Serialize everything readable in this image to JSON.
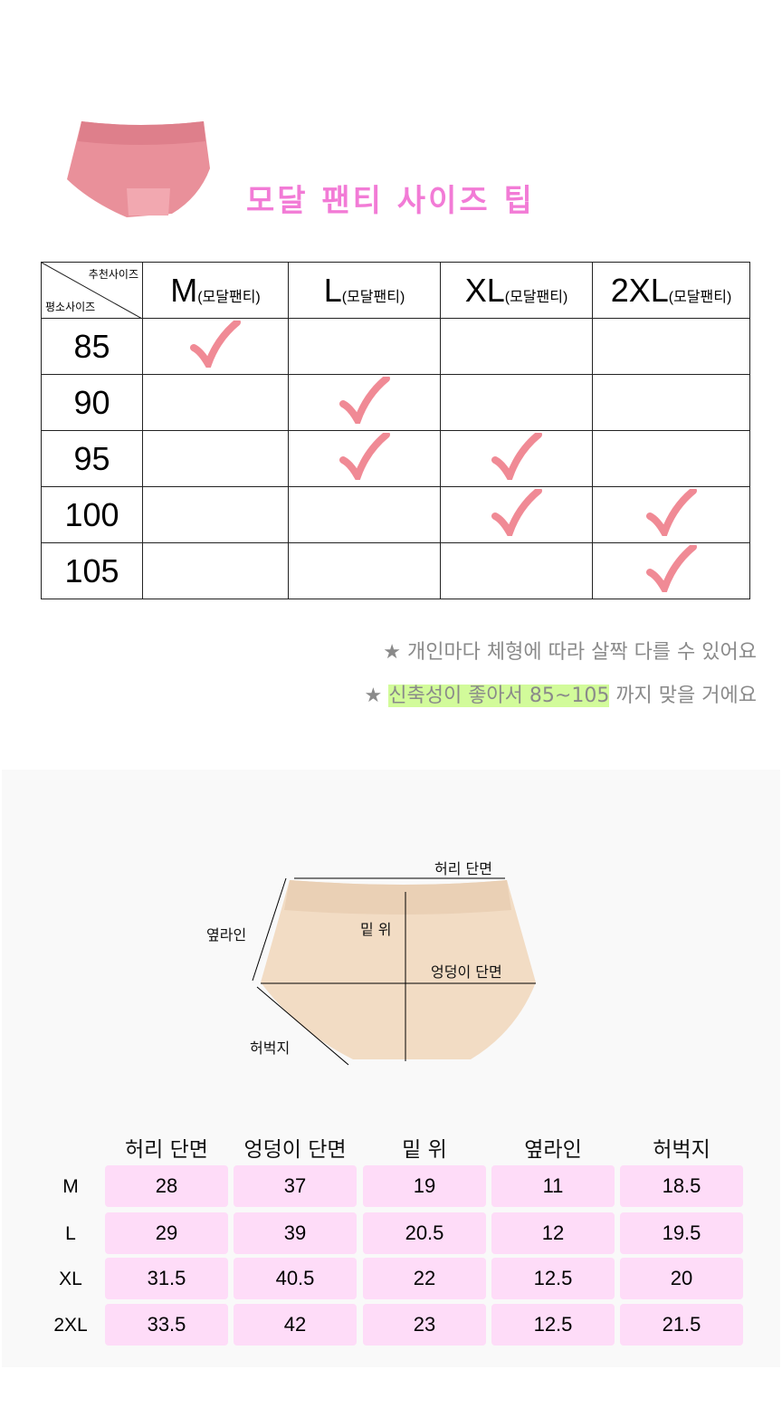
{
  "title": "모달 팬티 사이즈 팁",
  "rec_table": {
    "corner_top": "추천사이즈",
    "corner_bottom": "평소사이즈",
    "columns": [
      {
        "size": "M",
        "suffix": "(모달팬티)"
      },
      {
        "size": "L",
        "suffix": "(모달팬티)"
      },
      {
        "size": "XL",
        "suffix": "(모달팬티)"
      },
      {
        "size": "2XL",
        "suffix": "(모달팬티)"
      }
    ],
    "rows": [
      {
        "label": "85",
        "checks": [
          true,
          false,
          false,
          false
        ]
      },
      {
        "label": "90",
        "checks": [
          false,
          true,
          false,
          false
        ]
      },
      {
        "label": "95",
        "checks": [
          false,
          true,
          true,
          false
        ]
      },
      {
        "label": "100",
        "checks": [
          false,
          false,
          true,
          true
        ]
      },
      {
        "label": "105",
        "checks": [
          false,
          false,
          false,
          true
        ]
      }
    ],
    "check_color": "#f08a95"
  },
  "notes": {
    "star": "★",
    "line1": "개인마다 체형에 따라 살짝 다를 수 있어요",
    "line2_highlight": "신축성이 좋아서 85~105",
    "line2_rest": " 까지 맞을 거에요",
    "highlight_color": "#d2fb9a"
  },
  "diagram": {
    "waist": "허리 단면",
    "rise": "밑 위",
    "side": "옆라인",
    "hip": "엉덩이 단면",
    "thigh": "허벅지"
  },
  "measure": {
    "headers": [
      "허리 단면",
      "엉덩이 단면",
      "밑  위",
      "옆라인",
      "허벅지"
    ],
    "rows": [
      {
        "size": "M",
        "values": [
          "28",
          "37",
          "19",
          "11",
          "18.5"
        ]
      },
      {
        "size": "L",
        "values": [
          "29",
          "39",
          "20.5",
          "12",
          "19.5"
        ]
      },
      {
        "size": "XL",
        "values": [
          "31.5",
          "40.5",
          "22",
          "12.5",
          "20"
        ]
      },
      {
        "size": "2XL",
        "values": [
          "33.5",
          "42",
          "23",
          "12.5",
          "21.5"
        ]
      }
    ],
    "cell_color": "#fedcf8"
  }
}
